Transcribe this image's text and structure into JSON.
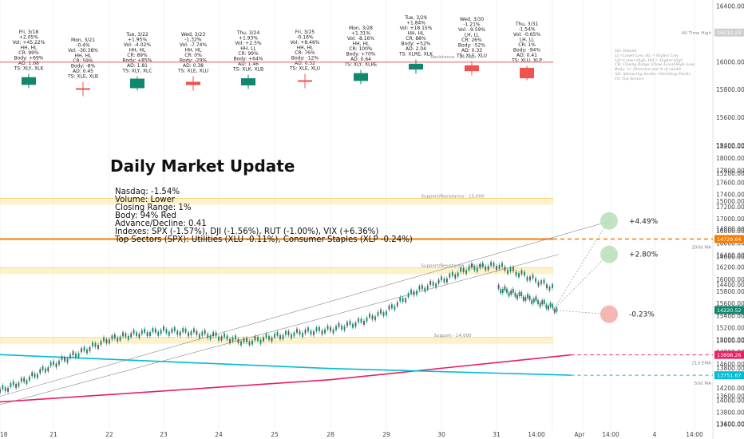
{
  "summary": {
    "title": "Daily Market Update",
    "lines": [
      "Nasdaq: -1.54%",
      "Volume: Lower",
      "Closing Range: 1%",
      "Body: 94% Red",
      "Advance/Decline: 0.41",
      "Indexes: SPX (-1.57%), DJI (-1.56%), RUT (-1.00%), VIX (+6.36%)",
      "Top Sectors (SPX): Utilities (XLU -0.11%), Consumer Staples (XLP -0.24%)"
    ]
  },
  "legend_lines": [
    "Vol: Volume",
    "LL=Lower Low, HL = Higher Low",
    "LH=Lower High, HH = Higher High",
    "CR: Closing Range (Close-Low)/(High-Low)",
    "Body: +/- Direction and % of candle",
    "AD: Advancing Stocks / Declining Stocks",
    "TS: Top Sectors"
  ],
  "colors": {
    "up": "#12876f",
    "down": "#ef5350",
    "orange": "#f57c00",
    "pink": "#e91e63",
    "cyan": "#00bcd4",
    "band": "#fbe7a1"
  },
  "daily_cards": [
    {
      "date": "Fri, 3/18",
      "lines": [
        "+2.05%",
        "Vol: +45.22%",
        "HH, HL",
        "CR: 99%",
        "Body: +69%",
        "AD: 1.68",
        "TS: XLY, XLK"
      ],
      "dir": "up",
      "body": 0.69
    },
    {
      "date": "Mon, 3/21",
      "lines": [
        "-0.4%",
        "Vol: -30.38%",
        "HH, HL",
        "CR: 59%",
        "Body: -8%",
        "AD: 0.45",
        "TS: XLE, XLB"
      ],
      "dir": "down",
      "body": 0.08
    },
    {
      "date": "Tue, 3/22",
      "lines": [
        "+1.95%",
        "Vol: -4.02%",
        "HH, HL",
        "CR: 89%",
        "Body: +85%",
        "AD: 1.81",
        "TS: XLY, XLC"
      ],
      "dir": "up",
      "body": 0.85
    },
    {
      "date": "Wed, 3/23",
      "lines": [
        "-1.32%",
        "Vol: -7.74%",
        "HH, HL",
        "CR: 0%",
        "Body: -29%",
        "AD: 0.38",
        "TS: XLE, XLU"
      ],
      "dir": "down",
      "body": 0.29
    },
    {
      "date": "Thu, 3/24",
      "lines": [
        "+1.93%",
        "Vol: +2.5%",
        "HH, LL",
        "CR: 99%",
        "Body: +64%",
        "AD: 1.46",
        "TS: XLK, XLB"
      ],
      "dir": "up",
      "body": 0.64
    },
    {
      "date": "Fri, 3/25",
      "lines": [
        "-0.16%",
        "Vol: +8.46%",
        "HH, HL",
        "CR: 76%",
        "Body: -12%",
        "AD: 0.52",
        "TS: XLE, XLU"
      ],
      "dir": "down",
      "body": 0.12
    },
    {
      "date": "Mon, 3/28",
      "lines": [
        "+1.31%",
        "Vol: -8.16%",
        "HH, HL",
        "CR: 100%",
        "Body: +70%",
        "AD: 0.64",
        "TS: XLY, XLRE"
      ],
      "dir": "up",
      "body": 0.7
    },
    {
      "date": "Tue, 3/29",
      "lines": [
        "+1.84%",
        "Vol: +18.15%",
        "HH, HL",
        "CR: 88%",
        "Body: +52%",
        "AD: 2.04",
        "TS: XLRE, XLK"
      ],
      "dir": "up",
      "body": 0.52
    },
    {
      "date": "Wed, 3/30",
      "lines": [
        "-1.21%",
        "Vol: -9.59%",
        "LH, LL",
        "CR: 26%",
        "Body: -52%",
        "AD: 0.33",
        "TS: XLE, XLU"
      ],
      "dir": "down",
      "body": 0.52
    },
    {
      "date": "Thu, 3/31",
      "lines": [
        "-1.54%",
        "Vol: -0.65%",
        "LH, LL",
        "CR: 1%",
        "Body: -94%",
        "AD: 0.41",
        "TS: XLU, XLP"
      ],
      "dir": "down",
      "body": 0.94
    }
  ],
  "levels": [
    {
      "label": "Resistance - 16,000",
      "value": 16000,
      "color": "#e57373"
    },
    {
      "label": "Support/Resistance - 15,000",
      "value": 15000,
      "color": "#fbe7a1"
    },
    {
      "label": "Support/Resistance - 14,500",
      "value": 14500,
      "color": "#fbe7a1"
    },
    {
      "label": "Support - 14,000",
      "value": 14000,
      "color": "#fbe7a1"
    }
  ],
  "badges": [
    {
      "label": "All Time High",
      "value": "16212.23",
      "color": "#cfcfcf",
      "text_color": "#333333",
      "price": 16212.23
    },
    {
      "label": "200d MA",
      "value": "14729.64",
      "color": "#f57c00",
      "text_color": "#ffffff",
      "price": 14729.64
    },
    {
      "label": "",
      "value": "14220.52",
      "color": "#12876f",
      "text_color": "#ffffff",
      "price": 14220.52
    },
    {
      "label": "21d EMA",
      "value": "13898.26",
      "color": "#e91e63",
      "text_color": "#ffffff",
      "price": 13898.26
    },
    {
      "label": "50d MA",
      "value": "13751.67",
      "color": "#00bcd4",
      "text_color": "#ffffff",
      "price": 13751.67
    }
  ],
  "targets": [
    {
      "label": "+4.49%",
      "price": 14860
    },
    {
      "label": "+2.80%",
      "price": 14620
    },
    {
      "label": "-0.23%",
      "price": 14190
    }
  ],
  "chart_data": {
    "type": "line",
    "symbol": "Nasdaq intraday",
    "x_ticks": [
      "18",
      "21",
      "22",
      "23",
      "24",
      "25",
      "28",
      "29",
      "30",
      "31",
      "14:00",
      "Apr",
      "14:00",
      "4",
      "14:00"
    ],
    "upper_axis": {
      "ylim": [
        13300,
        16400
      ],
      "ticks": [
        16400,
        16200,
        16000,
        15800,
        15600,
        15400,
        15200,
        15000,
        14800,
        14600,
        14400,
        14200,
        14000,
        13800,
        13600,
        13400
      ]
    },
    "lower_axis": {
      "ylim": [
        13550,
        18300
      ],
      "ticks": [
        18200,
        18000,
        17800,
        17600,
        17400,
        17200,
        17000,
        16800,
        16600,
        16400,
        16200,
        16000,
        15800,
        15600,
        15400,
        15200,
        15000,
        14800,
        14600,
        14400,
        14200,
        14000,
        13800,
        13600
      ]
    },
    "price_path": [
      {
        "t": 0,
        "p": 13640
      },
      {
        "t": 0.5,
        "p": 13720
      },
      {
        "t": 1,
        "p": 13830
      },
      {
        "t": 1.5,
        "p": 13920
      },
      {
        "t": 2,
        "p": 14010
      },
      {
        "t": 2.5,
        "p": 14050
      },
      {
        "t": 3,
        "p": 14070
      },
      {
        "t": 3.5,
        "p": 14060
      },
      {
        "t": 4,
        "p": 14030
      },
      {
        "t": 4.5,
        "p": 13990
      },
      {
        "t": 5,
        "p": 14030
      },
      {
        "t": 5.5,
        "p": 14060
      },
      {
        "t": 6,
        "p": 14080
      },
      {
        "t": 6.5,
        "p": 14130
      },
      {
        "t": 7,
        "p": 14210
      },
      {
        "t": 7.5,
        "p": 14350
      },
      {
        "t": 8,
        "p": 14430
      },
      {
        "t": 8.5,
        "p": 14520
      },
      {
        "t": 9,
        "p": 14540
      },
      {
        "t": 9.5,
        "p": 14470
      },
      {
        "t": 10,
        "p": 14380
      },
      {
        "t": 10.5,
        "p": 14330
      },
      {
        "t": 11,
        "p": 14280
      },
      {
        "t": 11.5,
        "p": 14220
      }
    ],
    "ma200": 14729.64,
    "ema21": [
      {
        "t": 0,
        "p": 13560
      },
      {
        "t": 6,
        "p": 13720
      },
      {
        "t": 11.8,
        "p": 13898
      }
    ],
    "ma50": [
      {
        "t": 0,
        "p": 13900
      },
      {
        "t": 6,
        "p": 13800
      },
      {
        "t": 11.8,
        "p": 13752
      }
    ]
  }
}
